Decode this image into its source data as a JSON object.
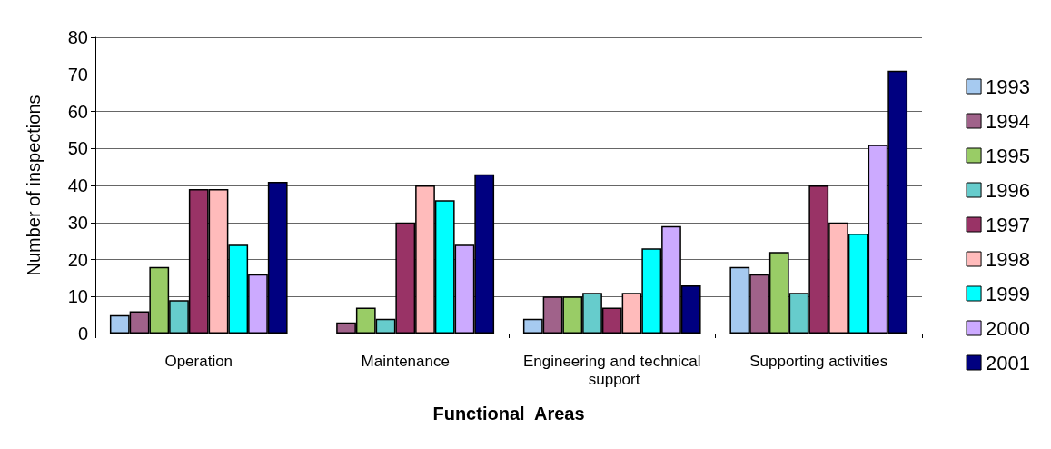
{
  "chart_data": {
    "type": "bar",
    "xlabel": "Functional  Areas",
    "ylabel": "Number of inspections",
    "categories": [
      "Operation",
      "Maintenance",
      "Engineering and technical support",
      "Supporting activities"
    ],
    "series": [
      {
        "name": "1993",
        "color": "#a6caf0",
        "values": [
          5,
          0,
          4,
          18
        ]
      },
      {
        "name": "1994",
        "color": "#a0628a",
        "values": [
          6,
          3,
          10,
          16
        ]
      },
      {
        "name": "1995",
        "color": "#99cc66",
        "values": [
          18,
          7,
          10,
          22
        ]
      },
      {
        "name": "1996",
        "color": "#66cccc",
        "values": [
          9,
          4,
          11,
          11
        ]
      },
      {
        "name": "1997",
        "color": "#993366",
        "values": [
          39,
          30,
          7,
          40
        ]
      },
      {
        "name": "1998",
        "color": "#ffbbbb",
        "values": [
          39,
          40,
          11,
          30
        ]
      },
      {
        "name": "1999",
        "color": "#00ffff",
        "values": [
          24,
          36,
          23,
          27
        ]
      },
      {
        "name": "2000",
        "color": "#ccaaff",
        "values": [
          16,
          24,
          29,
          51
        ]
      },
      {
        "name": "2001",
        "color": "#000080",
        "values": [
          41,
          43,
          13,
          71
        ]
      }
    ],
    "ylim": [
      0,
      80
    ],
    "yticks": [
      0,
      10,
      20,
      30,
      40,
      50,
      60,
      70,
      80
    ],
    "grid": "y",
    "legend": "right"
  }
}
